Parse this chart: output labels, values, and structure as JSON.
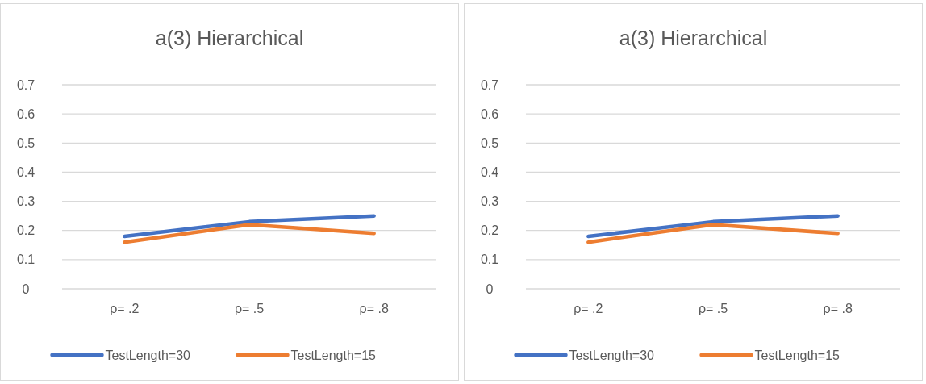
{
  "chart_data": [
    {
      "type": "line",
      "title": "a(3) Hierarchical",
      "categories": [
        "ρ= .2",
        "ρ= .5",
        "ρ= .8"
      ],
      "series": [
        {
          "name": "TestLength=30",
          "color": "#4472c4",
          "values": [
            0.18,
            0.23,
            0.25
          ]
        },
        {
          "name": "TestLength=15",
          "color": "#ed7d31",
          "values": [
            0.16,
            0.22,
            0.19
          ]
        }
      ],
      "ylim": [
        0,
        0.7
      ],
      "yticks": [
        0,
        0.1,
        0.2,
        0.3,
        0.4,
        0.5,
        0.6,
        0.7
      ],
      "grid": "y",
      "legend": "bottom",
      "marker": "none",
      "line_style": "solid"
    },
    {
      "type": "line",
      "title": "a(3) Hierarchical",
      "categories": [
        "ρ= .2",
        "ρ= .5",
        "ρ= .8"
      ],
      "series": [
        {
          "name": "TestLength=30",
          "color": "#4472c4",
          "values": [
            0.18,
            0.23,
            0.25
          ]
        },
        {
          "name": "TestLength=15",
          "color": "#ed7d31",
          "values": [
            0.16,
            0.22,
            0.19
          ]
        }
      ],
      "ylim": [
        0,
        0.7
      ],
      "yticks": [
        0,
        0.1,
        0.2,
        0.3,
        0.4,
        0.5,
        0.6,
        0.7
      ],
      "grid": "y",
      "legend": "bottom",
      "marker": "none",
      "line_style": "solid"
    }
  ]
}
